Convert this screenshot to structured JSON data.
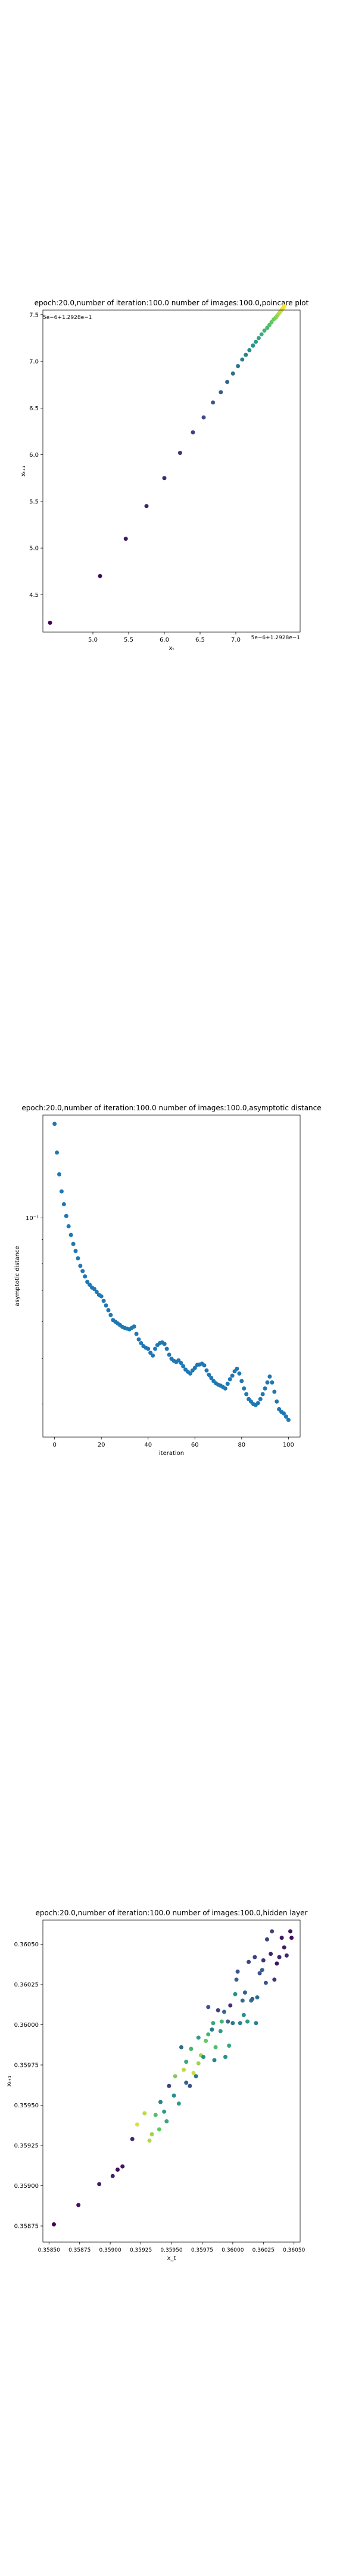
{
  "figures": [
    {
      "id": "poincare",
      "title": "epoch:20.0,number of iteration:100.0 number of images:100.0,poincare plot",
      "xlabel": "xₜ",
      "ylabel": "xₜ₊₁",
      "offset_text_x": "5e−6+1.2928e−1",
      "offset_text_y": "5e−6+1.2928e−1"
    },
    {
      "id": "asymptotic",
      "title": "epoch:20.0,number of iteration:100.0  number of images:100.0,asymptotic distance",
      "xlabel": "iteration",
      "ylabel": "asymptotic distance"
    },
    {
      "id": "hidden",
      "title": "epoch:20.0,number of iteration:100.0  number of images:100.0,hidden layer",
      "xlabel": "x_t",
      "ylabel": "xₜ₊₁"
    }
  ],
  "chart_data": [
    {
      "type": "scatter",
      "title": "epoch:20.0,number of iteration:100.0 number of images:100.0,poincare plot",
      "xlabel": "xₜ",
      "ylabel": "xₜ₊₁",
      "xlim": [
        4.3,
        7.9
      ],
      "ylim": [
        4.1,
        7.55
      ],
      "xticks": [
        5.0,
        5.5,
        6.0,
        6.5,
        7.0
      ],
      "yticks": [
        4.5,
        5.0,
        5.5,
        6.0,
        6.5,
        7.0,
        7.5
      ],
      "xtick_labels": [
        "5.0",
        "5.5",
        "6.0",
        "6.5",
        "7.0"
      ],
      "ytick_labels": [
        "4.5",
        "5.0",
        "5.5",
        "6.0",
        "6.5",
        "7.0",
        "7.5"
      ],
      "grid": false,
      "colormap": [
        "#440154",
        "#3b528b",
        "#21918c",
        "#5ec962",
        "#fde725"
      ],
      "x": [
        4.4,
        5.1,
        5.46,
        5.75,
        6.0,
        6.22,
        6.4,
        6.55,
        6.68,
        6.79,
        6.88,
        6.96,
        7.03,
        7.09,
        7.14,
        7.19,
        7.24,
        7.28,
        7.32,
        7.36,
        7.4,
        7.44,
        7.47,
        7.5,
        7.53,
        7.56,
        7.58,
        7.6,
        7.62,
        7.64,
        7.66,
        7.68
      ],
      "y": [
        4.2,
        4.7,
        5.1,
        5.45,
        5.75,
        6.02,
        6.24,
        6.4,
        6.56,
        6.67,
        6.78,
        6.87,
        6.95,
        7.02,
        7.07,
        7.12,
        7.17,
        7.21,
        7.25,
        7.29,
        7.33,
        7.36,
        7.39,
        7.42,
        7.45,
        7.47,
        7.49,
        7.51,
        7.53,
        7.55,
        7.57,
        7.59
      ]
    },
    {
      "type": "scatter",
      "title": "epoch:20.0,number of iteration:100.0  number of images:100.0,asymptotic distance",
      "xlabel": "iteration",
      "ylabel": "asymptotic distance",
      "y_scale": "log",
      "xlim": [
        -5,
        105
      ],
      "xticks": [
        0,
        20,
        40,
        60,
        80,
        100
      ],
      "xtick_labels": [
        "0",
        "20",
        "40",
        "60",
        "80",
        "100"
      ],
      "ytick_labels": [
        "10⁻¹"
      ],
      "grid": false,
      "color": "#1f77b4",
      "x": [
        0,
        1,
        2,
        3,
        4,
        5,
        6,
        7,
        8,
        9,
        10,
        11,
        12,
        13,
        14,
        15,
        16,
        17,
        18,
        19,
        20,
        21,
        22,
        23,
        24,
        25,
        26,
        27,
        28,
        29,
        30,
        31,
        32,
        33,
        34,
        35,
        36,
        37,
        38,
        39,
        40,
        41,
        42,
        43,
        44,
        45,
        46,
        47,
        48,
        49,
        50,
        51,
        52,
        53,
        54,
        55,
        56,
        57,
        58,
        59,
        60,
        61,
        62,
        63,
        64,
        65,
        66,
        67,
        68,
        69,
        70,
        71,
        72,
        73,
        74,
        75,
        76,
        77,
        78,
        79,
        80,
        81,
        82,
        83,
        84,
        85,
        86,
        87,
        88,
        89,
        90,
        91,
        92,
        93,
        94,
        95,
        96,
        97,
        98,
        99,
        100
      ],
      "y": [
        0.159,
        0.138,
        0.124,
        0.114,
        0.107,
        0.101,
        0.096,
        0.092,
        0.088,
        0.085,
        0.082,
        0.079,
        0.077,
        0.075,
        0.073,
        0.072,
        0.071,
        0.0705,
        0.0695,
        0.0685,
        0.068,
        0.0665,
        0.065,
        0.0635,
        0.062,
        0.0605,
        0.06,
        0.0595,
        0.059,
        0.0585,
        0.0582,
        0.058,
        0.0578,
        0.0582,
        0.0586,
        0.0565,
        0.055,
        0.054,
        0.0532,
        0.0528,
        0.0525,
        0.0515,
        0.0508,
        0.0525,
        0.0535,
        0.054,
        0.0542,
        0.0538,
        0.0525,
        0.051,
        0.05,
        0.0495,
        0.0492,
        0.0496,
        0.049,
        0.0482,
        0.0474,
        0.0469,
        0.0465,
        0.0472,
        0.0478,
        0.0485,
        0.0486,
        0.0488,
        0.0484,
        0.0472,
        0.0462,
        0.0455,
        0.0448,
        0.0443,
        0.044,
        0.0438,
        0.0435,
        0.0432,
        0.0442,
        0.0452,
        0.046,
        0.047,
        0.0476,
        0.0465,
        0.0448,
        0.0432,
        0.042,
        0.041,
        0.0405,
        0.04,
        0.0398,
        0.0402,
        0.041,
        0.042,
        0.0432,
        0.0445,
        0.0458,
        0.0445,
        0.0425,
        0.0405,
        0.039,
        0.0385,
        0.0382,
        0.0376,
        0.037
      ]
    },
    {
      "type": "scatter",
      "title": "epoch:20.0,number of iteration:100.0  number of images:100.0,hidden layer",
      "xlabel": "x_t",
      "ylabel": "xₜ₊₁",
      "xlim": [
        0.35845,
        0.36055
      ],
      "ylim": [
        0.35865,
        0.36065
      ],
      "xticks": [
        0.3585,
        0.35875,
        0.359,
        0.35925,
        0.3595,
        0.35975,
        0.36,
        0.36025,
        0.3605
      ],
      "yticks": [
        0.35875,
        0.359,
        0.35925,
        0.3595,
        0.35975,
        0.36,
        0.36025,
        0.3605
      ],
      "xtick_labels": [
        "0.35850",
        "0.35875",
        "0.35900",
        "0.35925",
        "0.35950",
        "0.35975",
        "0.36000",
        "0.36025",
        "0.36050"
      ],
      "ytick_labels": [
        "0.35875",
        "0.35900",
        "0.35925",
        "0.35950",
        "0.35975",
        "0.36000",
        "0.36025",
        "0.36050"
      ],
      "grid": false,
      "colormap": [
        "#440154",
        "#3b528b",
        "#21918c",
        "#5ec962",
        "#fde725"
      ],
      "x": [
        0.35854,
        0.35874,
        0.35891,
        0.35902,
        0.35906,
        0.3591,
        0.35918,
        0.35922,
        0.35928,
        0.35932,
        0.35934,
        0.35937,
        0.3594,
        0.35941,
        0.35944,
        0.35946,
        0.35948,
        0.35952,
        0.35953,
        0.35956,
        0.35958,
        0.3596,
        0.35962,
        0.35962,
        0.35965,
        0.35966,
        0.35968,
        0.3597,
        0.35972,
        0.35972,
        0.35974,
        0.35976,
        0.35978,
        0.3598,
        0.3598,
        0.35983,
        0.35984,
        0.35985,
        0.35986,
        0.35988,
        0.3599,
        0.35991,
        0.35993,
        0.35994,
        0.35996,
        0.35997,
        0.35998,
        0.36,
        0.36002,
        0.36003,
        0.36004,
        0.36006,
        0.36008,
        0.36009,
        0.3601,
        0.36012,
        0.36013,
        0.36015,
        0.36016,
        0.36018,
        0.36019,
        0.3602,
        0.36022,
        0.36024,
        0.36025,
        0.36027,
        0.36028,
        0.36031,
        0.36032,
        0.36034,
        0.36036,
        0.36038,
        0.3604,
        0.36042,
        0.36044,
        0.36047,
        0.36048
      ],
      "y": [
        0.35876,
        0.35888,
        0.35901,
        0.35906,
        0.3591,
        0.35912,
        0.35929,
        0.35938,
        0.35945,
        0.35928,
        0.35932,
        0.35944,
        0.35935,
        0.35952,
        0.35946,
        0.3594,
        0.35962,
        0.35956,
        0.35968,
        0.35951,
        0.35986,
        0.35972,
        0.35964,
        0.35977,
        0.35962,
        0.35985,
        0.3597,
        0.35968,
        0.35976,
        0.35992,
        0.35981,
        0.3598,
        0.3599,
        0.35994,
        0.36011,
        0.35997,
        0.36001,
        0.35978,
        0.35986,
        0.36009,
        0.35996,
        0.36002,
        0.36008,
        0.3598,
        0.36002,
        0.35987,
        0.36012,
        0.36001,
        0.36019,
        0.36028,
        0.36033,
        0.36001,
        0.36015,
        0.36006,
        0.3602,
        0.36002,
        0.36039,
        0.36015,
        0.36016,
        0.36042,
        0.36001,
        0.36017,
        0.36032,
        0.36034,
        0.3604,
        0.36026,
        0.36053,
        0.36044,
        0.36058,
        0.36028,
        0.36038,
        0.36042,
        0.36054,
        0.36048,
        0.36043,
        0.36058,
        0.36054
      ],
      "c": [
        0.0,
        0.05,
        0.08,
        0.1,
        0.03,
        0.06,
        0.12,
        0.95,
        0.9,
        0.88,
        0.85,
        0.7,
        0.75,
        0.45,
        0.55,
        0.6,
        0.2,
        0.5,
        0.8,
        0.55,
        0.35,
        0.9,
        0.3,
        0.6,
        0.25,
        0.65,
        0.92,
        0.4,
        0.85,
        0.55,
        0.85,
        0.5,
        0.75,
        0.65,
        0.25,
        0.4,
        0.6,
        0.45,
        0.7,
        0.2,
        0.55,
        0.65,
        0.35,
        0.5,
        0.3,
        0.6,
        0.15,
        0.4,
        0.5,
        0.3,
        0.25,
        0.45,
        0.35,
        0.5,
        0.3,
        0.55,
        0.2,
        0.4,
        0.3,
        0.2,
        0.45,
        0.35,
        0.25,
        0.3,
        0.15,
        0.25,
        0.2,
        0.1,
        0.2,
        0.15,
        0.05,
        0.1,
        0.05,
        0.08,
        0.12,
        0.05,
        0.03
      ]
    }
  ]
}
